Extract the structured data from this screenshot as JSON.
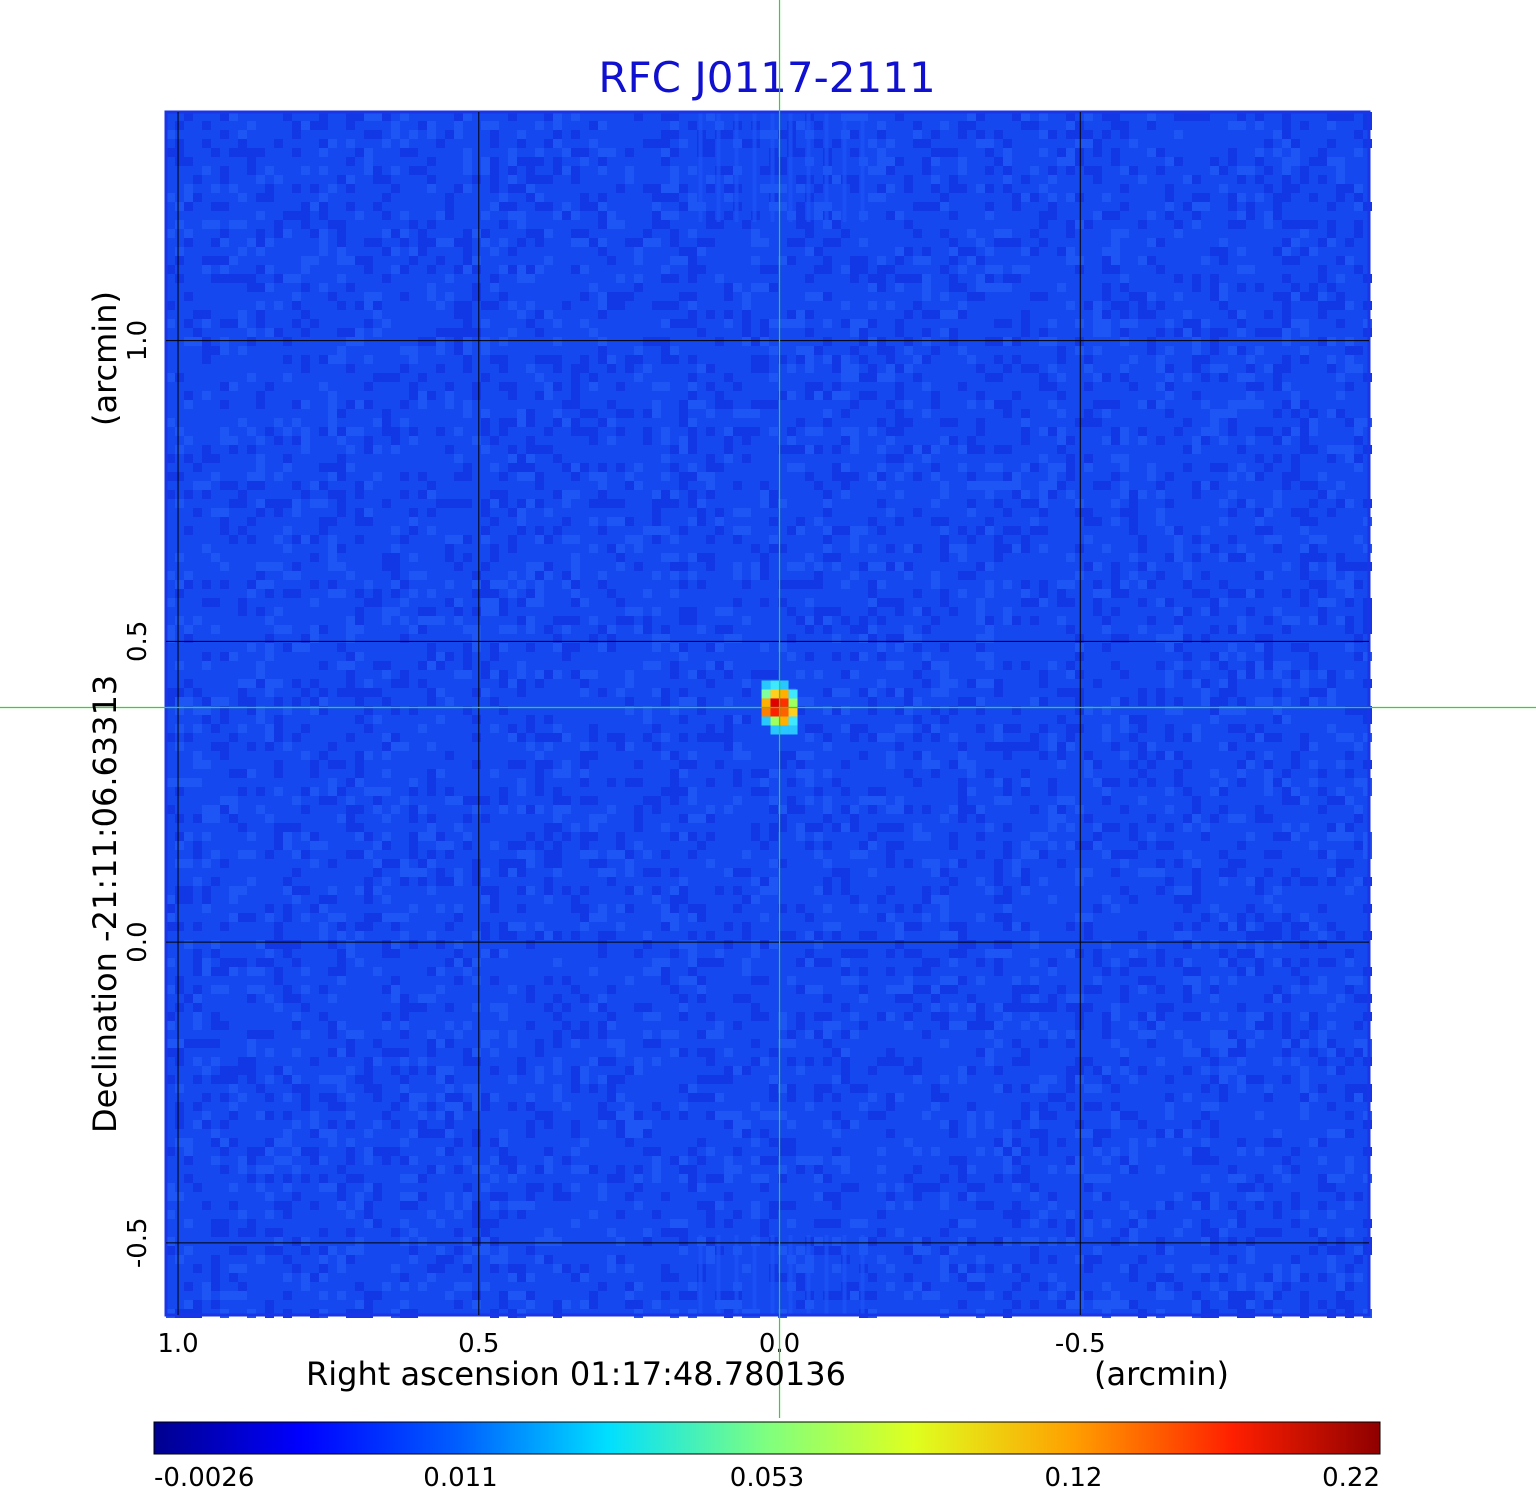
{
  "chart_data": {
    "type": "heatmap",
    "title": "RFC J0117-2111",
    "xlabel": "Right ascension  01:17:48.780136",
    "xlabel_unit": "(arcmin)",
    "ylabel": "Declination  -21:11:06.63313",
    "ylabel_unit": "(arcmin)",
    "x_ticks": [
      {
        "value": 1.0,
        "label": "1.0"
      },
      {
        "value": 0.5,
        "label": "0.5"
      },
      {
        "value": 0.0,
        "label": "0.0"
      },
      {
        "value": -0.5,
        "label": "-0.5"
      }
    ],
    "y_ticks": [
      {
        "value": 1.0,
        "label": "1.0"
      },
      {
        "value": 0.5,
        "label": "0.5"
      },
      {
        "value": 0.0,
        "label": "0.0"
      },
      {
        "value": -0.5,
        "label": "-0.5"
      }
    ],
    "xlim": [
      1.02,
      -0.98
    ],
    "ylim": [
      -0.62,
      1.38
    ],
    "x_reversed": true,
    "grid": true,
    "crosshair": {
      "x": 0.0,
      "y": 0.39
    },
    "peak": {
      "x": 0.0,
      "y": 0.39,
      "value": 0.22
    },
    "background_level": 0.0,
    "colorbar": {
      "tick_labels": [
        "-0.0026",
        "0.011",
        "0.053",
        "0.12",
        "0.22"
      ],
      "min": -0.0026,
      "max": 0.22,
      "colormap": "jet"
    },
    "colors": {
      "title": "#1010d0",
      "crosshair": "#22dd22",
      "grid": "#000000",
      "frame": "#1a35e8"
    }
  }
}
